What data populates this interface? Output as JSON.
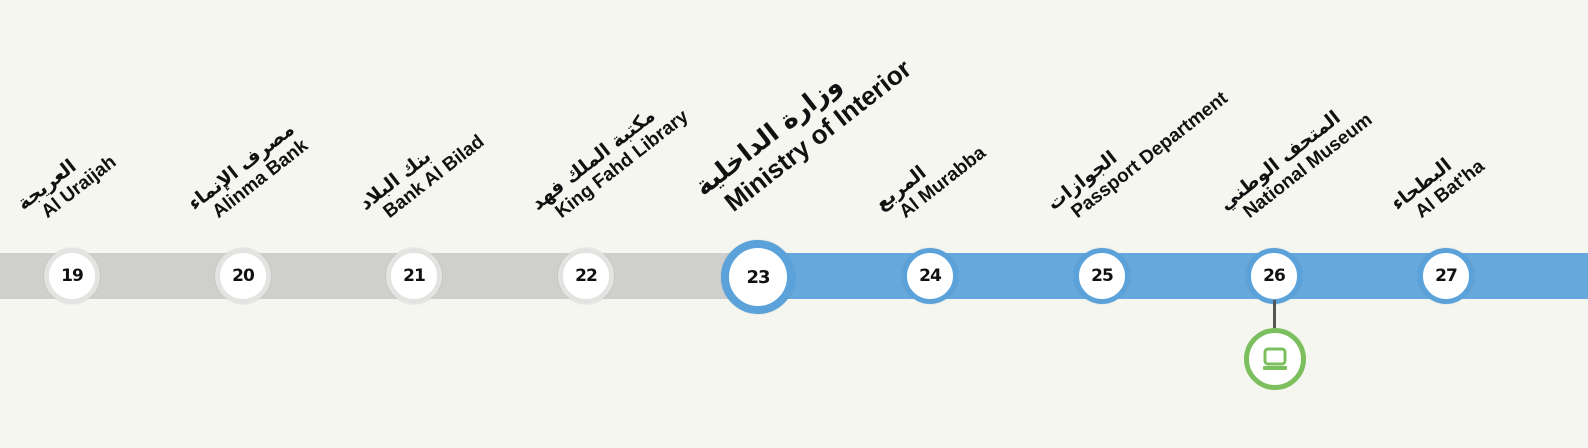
{
  "line_colors": {
    "before": "#cfcfcd",
    "after": "#66a8dc",
    "museum": "#7cbf5e"
  },
  "stations": [
    {
      "number": "19",
      "arabic": "العريجة",
      "english": "Al Uraijah",
      "state": "grey"
    },
    {
      "number": "20",
      "arabic": "مصرف الإنماء",
      "english": "Alinma Bank",
      "state": "grey"
    },
    {
      "number": "21",
      "arabic": "بنك البلاد",
      "english": "Bank Al Bilad",
      "state": "grey"
    },
    {
      "number": "22",
      "arabic": "مكتبة الملك فهد",
      "english": "King Fahd Library",
      "state": "grey"
    },
    {
      "number": "23",
      "arabic": "وزارة الداخلية",
      "english": "Ministry of Interior",
      "state": "current"
    },
    {
      "number": "24",
      "arabic": "المربع",
      "english": "Al Murabba",
      "state": "blue"
    },
    {
      "number": "25",
      "arabic": "الجوازات",
      "english": "Passport Department",
      "state": "blue"
    },
    {
      "number": "26",
      "arabic": "المتحف الوطني",
      "english": "National Museum",
      "state": "blue"
    },
    {
      "number": "27",
      "arabic": "البطحاء",
      "english": "Al Bat'ha",
      "state": "blue"
    }
  ],
  "poi_icon": "museum-icon"
}
